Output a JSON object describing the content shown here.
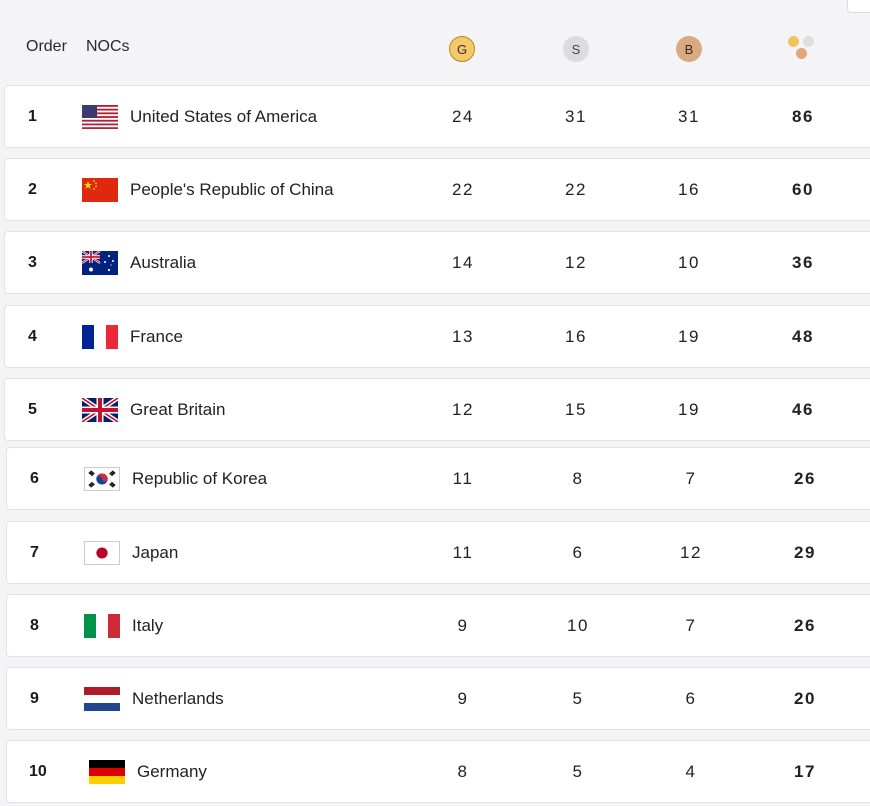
{
  "header": {
    "order_label": "Order",
    "nocs_label": "NOCs",
    "gold_label": "G",
    "silver_label": "S",
    "bronze_label": "B",
    "total_icon": "medal-total-icon"
  },
  "rows": [
    {
      "order": "1",
      "country": "United States of America",
      "flag_icon": "usa-flag-icon",
      "gold": "24",
      "silver": "31",
      "bronze": "31",
      "total": "86"
    },
    {
      "order": "2",
      "country": "People's Republic of China",
      "flag_icon": "china-flag-icon",
      "gold": "22",
      "silver": "22",
      "bronze": "16",
      "total": "60"
    },
    {
      "order": "3",
      "country": "Australia",
      "flag_icon": "australia-flag-icon",
      "gold": "14",
      "silver": "12",
      "bronze": "10",
      "total": "36"
    },
    {
      "order": "4",
      "country": "France",
      "flag_icon": "france-flag-icon",
      "gold": "13",
      "silver": "16",
      "bronze": "19",
      "total": "48"
    },
    {
      "order": "5",
      "country": "Great Britain",
      "flag_icon": "great-britain-flag-icon",
      "gold": "12",
      "silver": "15",
      "bronze": "19",
      "total": "46"
    },
    {
      "order": "6",
      "country": "Republic of Korea",
      "flag_icon": "korea-flag-icon",
      "gold": "11",
      "silver": "8",
      "bronze": "7",
      "total": "26"
    },
    {
      "order": "7",
      "country": "Japan",
      "flag_icon": "japan-flag-icon",
      "gold": "11",
      "silver": "6",
      "bronze": "12",
      "total": "29"
    },
    {
      "order": "8",
      "country": "Italy",
      "flag_icon": "italy-flag-icon",
      "gold": "9",
      "silver": "10",
      "bronze": "7",
      "total": "26"
    },
    {
      "order": "9",
      "country": "Netherlands",
      "flag_icon": "netherlands-flag-icon",
      "gold": "9",
      "silver": "5",
      "bronze": "6",
      "total": "20"
    },
    {
      "order": "10",
      "country": "Germany",
      "flag_icon": "germany-flag-icon",
      "gold": "8",
      "silver": "5",
      "bronze": "4",
      "total": "17"
    }
  ],
  "colors": {
    "gold": "#f3c969",
    "silver": "#dcdcdc",
    "bronze": "#d9a97f"
  }
}
